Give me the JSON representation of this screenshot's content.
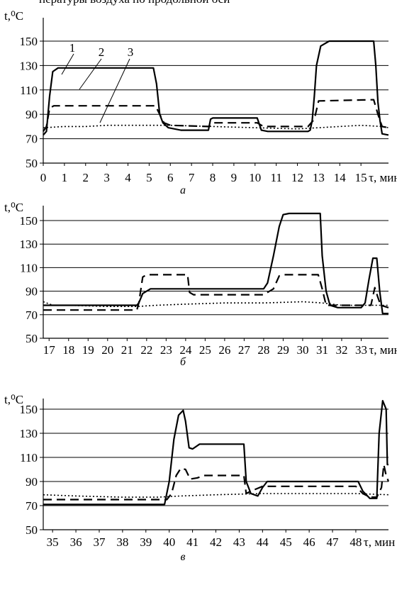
{
  "header_fragment": "пературы воздуха по продольной оси",
  "chart_data": [
    {
      "type": "line",
      "panel_label": "а",
      "ylabel": "t,⁰C",
      "xlabel": "τ, мин",
      "xlim": [
        0,
        16.3
      ],
      "ylim": [
        50,
        165
      ],
      "yticks": [
        50,
        70,
        90,
        110,
        130,
        150
      ],
      "xticks": [
        0,
        1,
        2,
        3,
        4,
        5,
        6,
        7,
        8,
        9,
        10,
        11,
        12,
        13,
        14,
        15
      ],
      "xtick_labels": [
        "0",
        "1",
        "2",
        "3",
        "4",
        "5",
        "6",
        "7",
        "8",
        "9",
        "10",
        "11",
        "12",
        "13",
        "14",
        "15"
      ],
      "grid": "horizontal",
      "callouts": [
        "1",
        "2",
        "3"
      ],
      "series": [
        {
          "name": "1",
          "style": "solid",
          "x": [
            0,
            0.15,
            0.3,
            0.45,
            0.7,
            1.0,
            5.2,
            5.35,
            5.5,
            5.65,
            5.9,
            6.5,
            7.5,
            7.8,
            7.9,
            8.0,
            10.1,
            10.3,
            10.6,
            12.5,
            12.6,
            12.7,
            12.8,
            12.9,
            13.1,
            13.5,
            15.6,
            15.7,
            15.8,
            15.9,
            16.0,
            16.3
          ],
          "y": [
            73,
            76,
            105,
            125,
            128,
            128,
            128,
            115,
            90,
            83,
            79,
            77,
            77,
            77,
            86,
            87,
            87,
            77,
            76,
            76,
            77,
            85,
            105,
            130,
            146,
            150,
            150,
            130,
            100,
            85,
            74,
            73
          ]
        },
        {
          "name": "2",
          "style": "dashed",
          "x": [
            0,
            0.15,
            0.3,
            0.5,
            5.3,
            5.5,
            5.7,
            6.0,
            7.8,
            8.0,
            10.1,
            10.4,
            12.5,
            12.8,
            13.0,
            15.6,
            15.8,
            16.0,
            16.3
          ],
          "y": [
            76,
            80,
            95,
            97,
            97,
            90,
            83,
            81,
            80,
            83,
            83,
            80,
            80,
            86,
            101,
            102,
            90,
            80,
            79
          ]
        },
        {
          "name": "3",
          "style": "dotted",
          "x": [
            0,
            1,
            2,
            3,
            4,
            5,
            6,
            8,
            10,
            12,
            13,
            14,
            15,
            16,
            16.3
          ],
          "y": [
            79,
            80,
            80,
            81,
            81,
            81,
            81,
            80,
            79,
            78,
            79,
            80,
            81,
            80,
            79
          ]
        }
      ]
    },
    {
      "type": "line",
      "panel_label": "б",
      "ylabel": "t,⁰C",
      "xlabel": "τ, мин",
      "xlim": [
        16.7,
        34.4
      ],
      "ylim": [
        50,
        165
      ],
      "yticks": [
        50,
        70,
        90,
        110,
        130,
        150
      ],
      "xticks": [
        17,
        18,
        19,
        20,
        21,
        22,
        23,
        24,
        25,
        26,
        27,
        28,
        29,
        30,
        31,
        32,
        33
      ],
      "xtick_labels": [
        "17",
        "18",
        "19",
        "20",
        "21",
        "22",
        "23",
        "24",
        "25",
        "26",
        "27",
        "28",
        "29",
        "30",
        "31",
        "32",
        "33"
      ],
      "grid": "horizontal",
      "series": [
        {
          "name": "1",
          "style": "solid",
          "x": [
            16.7,
            21.5,
            21.6,
            21.8,
            22.2,
            22.5,
            24.1,
            24.3,
            28.0,
            28.2,
            28.5,
            28.8,
            29.0,
            29.3,
            30.9,
            31.0,
            31.2,
            31.4,
            31.8,
            33.0,
            33.2,
            33.4,
            33.6,
            33.8,
            33.95,
            34.1,
            34.4
          ],
          "y": [
            78,
            78,
            80,
            88,
            92,
            92,
            92,
            92,
            92,
            97,
            120,
            145,
            155,
            156,
            156,
            120,
            90,
            78,
            76,
            76,
            80,
            100,
            118,
            118,
            90,
            71,
            71
          ]
        },
        {
          "name": "2",
          "style": "dashed",
          "x": [
            16.7,
            21.5,
            21.6,
            21.8,
            22.0,
            24.1,
            24.2,
            24.4,
            28.0,
            28.5,
            28.8,
            29.0,
            30.8,
            31.0,
            31.2,
            33.5,
            33.7,
            33.85,
            34.0,
            34.4
          ],
          "y": [
            74,
            74,
            80,
            102,
            104,
            104,
            89,
            87,
            87,
            92,
            103,
            104,
            104,
            92,
            78,
            78,
            93,
            85,
            78,
            76
          ]
        },
        {
          "name": "3",
          "style": "dotted",
          "x": [
            16.7,
            17.2,
            18,
            20,
            21.5,
            22.5,
            24,
            26,
            28,
            30,
            31,
            32,
            33,
            34,
            34.4
          ],
          "y": [
            81,
            78,
            78,
            77,
            77,
            78,
            79,
            80,
            80,
            81,
            80,
            78,
            78,
            78,
            78
          ]
        }
      ]
    },
    {
      "type": "line",
      "panel_label": "в",
      "ylabel": "t,⁰C",
      "xlabel": "τ, мин",
      "xlim": [
        34.6,
        49.4
      ],
      "ylim": [
        50,
        165
      ],
      "yticks": [
        50,
        70,
        90,
        110,
        130,
        150
      ],
      "xticks": [
        35,
        36,
        37,
        38,
        39,
        40,
        41,
        42,
        43,
        44,
        45,
        46,
        47,
        48
      ],
      "xtick_labels": [
        "35",
        "36",
        "37",
        "38",
        "39",
        "40",
        "41",
        "42",
        "43",
        "44",
        "45",
        "46",
        "47",
        "48"
      ],
      "grid": "horizontal",
      "series": [
        {
          "name": "1",
          "style": "solid",
          "x": [
            34.6,
            39.8,
            40.0,
            40.2,
            40.4,
            40.6,
            40.7,
            40.85,
            41.0,
            41.3,
            43.2,
            43.3,
            43.5,
            43.8,
            44.0,
            44.2,
            48.1,
            48.3,
            48.6,
            48.9,
            49.0,
            49.15,
            49.3,
            49.35,
            49.4
          ],
          "y": [
            71,
            71,
            90,
            125,
            145,
            149,
            140,
            118,
            117,
            121,
            121,
            90,
            80,
            78,
            85,
            90,
            90,
            82,
            76,
            76,
            130,
            157,
            150,
            104,
            104
          ]
        },
        {
          "name": "2",
          "style": "dashed",
          "x": [
            34.6,
            39.9,
            40.1,
            40.3,
            40.5,
            40.7,
            40.9,
            41.2,
            41.5,
            43.2,
            43.3,
            43.5,
            44.0,
            44.3,
            48.0,
            48.3,
            48.6,
            48.9,
            49.1,
            49.2,
            49.3,
            49.4
          ],
          "y": [
            75,
            75,
            80,
            95,
            101,
            100,
            92,
            93,
            95,
            95,
            80,
            82,
            86,
            86,
            86,
            80,
            77,
            77,
            85,
            104,
            95,
            90
          ]
        },
        {
          "name": "3",
          "style": "dotted",
          "x": [
            34.6,
            36,
            38,
            39.5,
            40.5,
            42,
            44,
            46,
            48,
            49.4
          ],
          "y": [
            79,
            78,
            77,
            77,
            78,
            79,
            80,
            80,
            80,
            79
          ]
        }
      ]
    }
  ]
}
